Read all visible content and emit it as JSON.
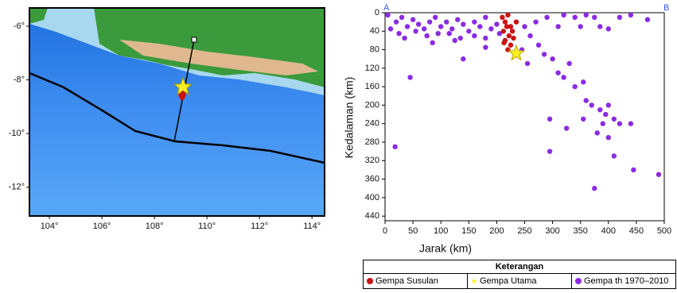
{
  "chart_data": [
    {
      "type": "map",
      "xlim": [
        103.24,
        114.48
      ],
      "ylim": [
        -13.07,
        -5.32
      ],
      "xticks": [
        {
          "value": 104,
          "label": "104°"
        },
        {
          "value": 106,
          "label": "106°"
        },
        {
          "value": 108,
          "label": "108°"
        },
        {
          "value": 110,
          "label": "110°"
        },
        {
          "value": 112,
          "label": "112°"
        },
        {
          "value": 114,
          "label": "114°"
        }
      ],
      "yticks": [
        {
          "value": -6,
          "label": "-6°"
        },
        {
          "value": -8,
          "label": "-8°"
        },
        {
          "value": -10,
          "label": "-10°"
        },
        {
          "value": -12,
          "label": "-12°"
        }
      ]
    },
    {
      "type": "scatter",
      "start_label": "A",
      "end_label": "B",
      "xlabel": "Jarak (km)",
      "ylabel": "Kedalaman (km)",
      "xlim": [
        0,
        500
      ],
      "ylim": [
        0,
        450
      ],
      "xticks": [
        0,
        50,
        100,
        150,
        200,
        250,
        300,
        350,
        400,
        450,
        500
      ],
      "yticks": [
        0,
        40,
        80,
        120,
        160,
        200,
        240,
        280,
        320,
        360,
        400,
        440
      ],
      "y_inverted": true,
      "legend_title": "Keterangan",
      "series": [
        {
          "name": "Gempa th 1970–2010",
          "color": "#8a2be2",
          "marker": "circle",
          "x": [
            5,
            20,
            30,
            40,
            50,
            60,
            70,
            80,
            90,
            100,
            110,
            120,
            130,
            140,
            150,
            160,
            170,
            180,
            190,
            200,
            10,
            25,
            55,
            75,
            95,
            115,
            135,
            160,
            180,
            205,
            125,
            85,
            35,
            140,
            180,
            250,
            270,
            290,
            310,
            320,
            340,
            350,
            360,
            375,
            385,
            400,
            420,
            440,
            470,
            260,
            275,
            285,
            300,
            245,
            255,
            310,
            320,
            330,
            340,
            355,
            360,
            370,
            385,
            395,
            400,
            390,
            410,
            380,
            400,
            420,
            440,
            355,
            325,
            295,
            295,
            410,
            445,
            490,
            375,
            18,
            45
          ],
          "values": [
            5,
            20,
            10,
            30,
            15,
            25,
            35,
            20,
            10,
            30,
            20,
            35,
            15,
            25,
            40,
            20,
            30,
            10,
            35,
            25,
            35,
            45,
            40,
            50,
            45,
            45,
            55,
            50,
            55,
            45,
            60,
            65,
            55,
            100,
            75,
            30,
            20,
            10,
            30,
            5,
            10,
            30,
            5,
            10,
            30,
            35,
            10,
            5,
            15,
            50,
            70,
            90,
            100,
            80,
            110,
            130,
            140,
            110,
            160,
            150,
            190,
            200,
            210,
            220,
            200,
            240,
            230,
            260,
            270,
            240,
            240,
            230,
            250,
            230,
            300,
            310,
            340,
            350,
            380,
            290,
            140
          ]
        },
        {
          "name": "Gempa Susulan",
          "color": "#cc1111",
          "marker": "circle",
          "x": [
            210,
            215,
            220,
            218,
            212,
            222,
            215,
            225,
            230,
            220,
            228,
            235,
            213,
            225
          ],
          "values": [
            10,
            20,
            5,
            30,
            40,
            50,
            60,
            70,
            55,
            80,
            40,
            20,
            65,
            30
          ]
        },
        {
          "name": "Gempa Utama",
          "color": "#ffee22",
          "marker": "star",
          "x": [
            235
          ],
          "values": [
            88
          ]
        }
      ]
    }
  ]
}
